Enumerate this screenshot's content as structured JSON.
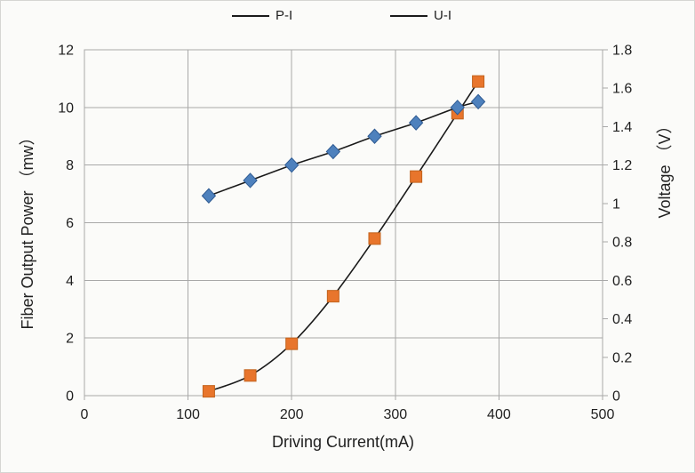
{
  "figure": {
    "background": "#fbfbf9",
    "frame_color": "#d6d6d3",
    "text_color": "#1f1f1f",
    "grid_color": "#a8a8a8"
  },
  "chart_data": {
    "type": "line",
    "title": "",
    "x": [
      120,
      160,
      200,
      240,
      280,
      320,
      360,
      380
    ],
    "series": [
      {
        "name": "P-I",
        "axis": "left",
        "marker": "square",
        "marker_color": "#E8752C",
        "marker_stroke": "#c2631d",
        "line_color": "#1a1a1a",
        "values": [
          0.15,
          0.7,
          1.8,
          3.45,
          5.45,
          7.6,
          9.8,
          10.9
        ]
      },
      {
        "name": "U-I",
        "axis": "right",
        "marker": "diamond",
        "marker_color": "#4E81BD",
        "marker_stroke": "#2f5b93",
        "line_color": "#1a1a1a",
        "values": [
          1.04,
          1.12,
          1.2,
          1.27,
          1.35,
          1.42,
          1.5,
          1.53
        ]
      }
    ],
    "x_axis": {
      "label": "Driving Current(mA)",
      "min": 0,
      "max": 500,
      "step": 100,
      "tick_labels": [
        "0",
        "100",
        "200",
        "300",
        "400",
        "500"
      ]
    },
    "y_left": {
      "label": "Fiber Output Power （mw）",
      "min": 0,
      "max": 12,
      "step": 2,
      "tick_labels": [
        "0",
        "2",
        "4",
        "6",
        "8",
        "10",
        "12"
      ]
    },
    "y_right": {
      "label": "Voltage （V）",
      "min": 0,
      "max": 1.8,
      "step": 0.2,
      "tick_labels": [
        "0",
        "0.2",
        "0.4",
        "0.6",
        "0.8",
        "1",
        "1.2",
        "1.4",
        "1.6",
        "1.8"
      ]
    },
    "grid": true,
    "legend_position": "top"
  }
}
